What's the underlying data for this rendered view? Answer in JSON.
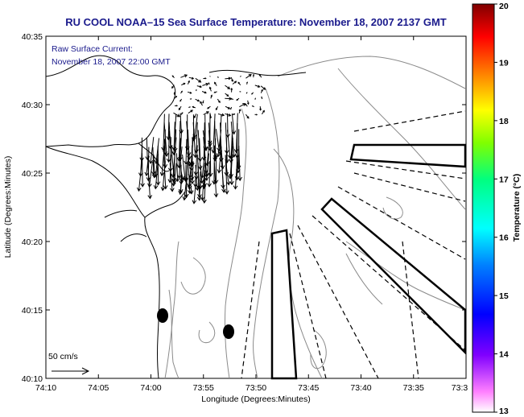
{
  "title": "RU COOL  NOAA–15  Sea Surface Temperature:  November 18, 2007 2137 GMT",
  "annotation": {
    "line1": "Raw Surface Current:",
    "line2": "November 18, 2007 22:00 GMT"
  },
  "scale_arrow_label": "50 cm/s",
  "x_axis": {
    "label": "Longitude (Degrees:Minutes)",
    "ticks": [
      "74:10",
      "74:05",
      "74:00",
      "73:55",
      "73:50",
      "73:45",
      "73:40",
      "73:35",
      "73:3"
    ]
  },
  "y_axis": {
    "label": "Latitude (Degrees:Minutes)",
    "ticks": [
      "40:35",
      "40:30",
      "40:25",
      "40:20",
      "40:15",
      "40:10"
    ]
  },
  "colorbar": {
    "label": "Temperature (°C)",
    "min": 13,
    "max": 20,
    "ticks": [
      "20",
      "19",
      "18",
      "17",
      "16",
      "15",
      "14",
      "13"
    ]
  },
  "colors": {
    "title_text": "#1a1a8c",
    "land_outline": "#000000",
    "bathymetry_contour": "#808080"
  },
  "icons": {
    "markers": "filled-ellipse",
    "current_vectors": "arrow"
  }
}
